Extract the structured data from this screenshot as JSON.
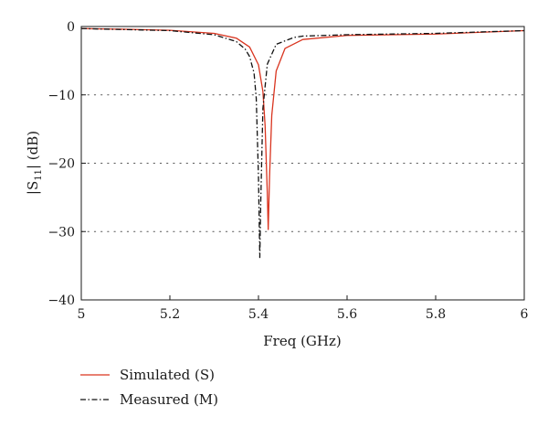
{
  "chart_data": {
    "type": "line",
    "xlabel": "Freq (GHz)",
    "ylabel_main": "|S",
    "ylabel_sub": "11",
    "ylabel_tail": "| (dB)",
    "xlim": [
      5,
      6
    ],
    "ylim": [
      -40,
      0
    ],
    "x_ticks": [
      5,
      5.2,
      5.4,
      5.6,
      5.8,
      6
    ],
    "x_tick_labels": [
      "5",
      "5.2",
      "5.4",
      "5.6",
      "5.8",
      "6"
    ],
    "y_ticks": [
      0,
      -10,
      -20,
      -30,
      -40
    ],
    "y_tick_labels": [
      "0",
      "−10",
      "−20",
      "−30",
      "−40"
    ],
    "grid": "horizontal dotted",
    "legend_placement": "below-left",
    "series": [
      {
        "name": "Simulated (S)",
        "color": "#d9341f",
        "style": "solid",
        "resonance_freq": 5.422,
        "min_db": -29.7,
        "x": [
          5.0,
          5.1,
          5.2,
          5.3,
          5.35,
          5.38,
          5.4,
          5.41,
          5.415,
          5.42,
          5.422,
          5.425,
          5.43,
          5.44,
          5.46,
          5.5,
          5.6,
          5.8,
          6.0
        ],
        "values": [
          -0.3,
          -0.4,
          -0.55,
          -1.0,
          -1.7,
          -3.0,
          -5.6,
          -9.5,
          -14.5,
          -24.5,
          -29.7,
          -22.0,
          -13.0,
          -6.5,
          -3.2,
          -1.9,
          -1.3,
          -1.1,
          -0.6
        ]
      },
      {
        "name": "Measured (M)",
        "color": "#111111",
        "style": "dash-dot",
        "resonance_freq": 5.403,
        "min_db": -33.8,
        "x": [
          5.0,
          5.1,
          5.2,
          5.3,
          5.35,
          5.37,
          5.38,
          5.39,
          5.395,
          5.4,
          5.403,
          5.405,
          5.41,
          5.42,
          5.44,
          5.48,
          5.5,
          5.6,
          5.8,
          6.0
        ],
        "values": [
          -0.3,
          -0.45,
          -0.6,
          -1.2,
          -2.2,
          -3.3,
          -4.4,
          -6.8,
          -10.5,
          -22.0,
          -33.8,
          -26.0,
          -12.0,
          -5.5,
          -2.6,
          -1.6,
          -1.4,
          -1.2,
          -1.0,
          -0.6
        ]
      }
    ]
  }
}
